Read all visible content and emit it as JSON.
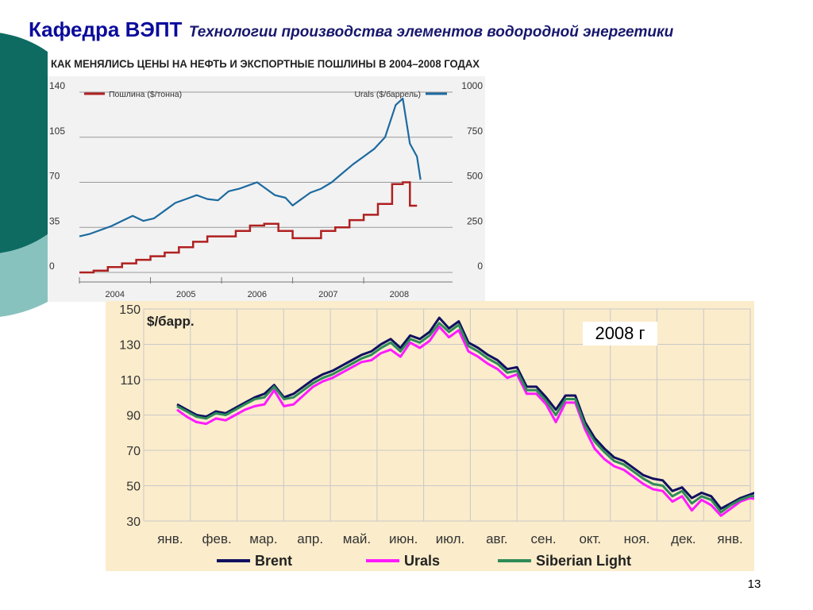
{
  "header": {
    "department": "Кафедра ВЭПТ",
    "subject": "Технологии производства элементов водородной энергетики"
  },
  "page_number": "13",
  "chart_data": [
    {
      "type": "line",
      "title": "КАК МЕНЯЛИСЬ ЦЕНЫ НА НЕФТЬ И ЭКСПОРТНЫЕ ПОШЛИНЫ В 2004–2008 ГОДАХ",
      "x_tick_labels": [
        "2004",
        "2005",
        "2006",
        "2007",
        "2008"
      ],
      "x_range": [
        2004.0,
        2009.25
      ],
      "y_left": {
        "ticks": [
          "140",
          "105",
          "70",
          "35",
          "0"
        ],
        "range": [
          0,
          140
        ]
      },
      "y_right": {
        "ticks": [
          "1000",
          "750",
          "500",
          "250",
          "0"
        ],
        "range": [
          0,
          1000
        ]
      },
      "grid": true,
      "colors": {
        "duty": "#b02020",
        "urals": "#1c6aa0",
        "title_bg": "#ffffff",
        "panel_bg": "#f2f2f2"
      },
      "series": [
        {
          "name": "Пошлина ($/тонна)",
          "axis": "right",
          "color": "#b02020",
          "step": true,
          "x": [
            2004.0,
            2004.2,
            2004.4,
            2004.6,
            2004.8,
            2005.0,
            2005.2,
            2005.4,
            2005.6,
            2005.8,
            2006.0,
            2006.2,
            2006.4,
            2006.6,
            2006.8,
            2007.0,
            2007.2,
            2007.4,
            2007.6,
            2007.8,
            2008.0,
            2008.2,
            2008.4,
            2008.55,
            2008.65,
            2008.75
          ],
          "y": [
            0,
            10,
            30,
            50,
            70,
            90,
            110,
            140,
            170,
            200,
            200,
            230,
            260,
            270,
            230,
            190,
            190,
            230,
            250,
            290,
            320,
            380,
            490,
            500,
            370,
            370
          ]
        },
        {
          "name": "Urals ($/баррель)",
          "axis": "left",
          "color": "#1c6aa0",
          "step": false,
          "x": [
            2004.0,
            2004.15,
            2004.3,
            2004.45,
            2004.6,
            2004.75,
            2004.9,
            2005.05,
            2005.2,
            2005.35,
            2005.5,
            2005.65,
            2005.8,
            2005.95,
            2006.1,
            2006.25,
            2006.4,
            2006.5,
            2006.6,
            2006.75,
            2006.9,
            2007.0,
            2007.1,
            2007.25,
            2007.4,
            2007.55,
            2007.7,
            2007.85,
            2008.0,
            2008.15,
            2008.3,
            2008.45,
            2008.55,
            2008.65,
            2008.75,
            2008.8
          ],
          "y": [
            28,
            30,
            33,
            36,
            40,
            44,
            40,
            42,
            48,
            54,
            57,
            60,
            57,
            56,
            63,
            65,
            68,
            70,
            66,
            60,
            58,
            52,
            56,
            62,
            65,
            70,
            77,
            84,
            90,
            96,
            105,
            130,
            135,
            100,
            90,
            72
          ]
        }
      ]
    },
    {
      "type": "line",
      "title": "",
      "ylabel": "$/барр.",
      "annotation": "2008 г",
      "categories": [
        "янв.",
        "фев.",
        "мар.",
        "апр.",
        "май.",
        "июн.",
        "июл.",
        "авг.",
        "сен.",
        "окт.",
        "ноя.",
        "дек.",
        "янв."
      ],
      "x_range": [
        0,
        12
      ],
      "ylim": [
        30,
        150
      ],
      "y_ticks": [
        30,
        50,
        70,
        90,
        110,
        130,
        150
      ],
      "grid": true,
      "legend_position": "bottom",
      "colors": {
        "plot_bg": "#fbeccb",
        "grid": "#c8c8c8"
      },
      "series": [
        {
          "name": "Brent",
          "color": "#101060",
          "x": [
            0,
            0.2,
            0.4,
            0.6,
            0.8,
            1.0,
            1.2,
            1.4,
            1.6,
            1.8,
            2.0,
            2.2,
            2.4,
            2.6,
            2.8,
            3.0,
            3.2,
            3.4,
            3.6,
            3.8,
            4.0,
            4.2,
            4.4,
            4.6,
            4.8,
            5.0,
            5.2,
            5.4,
            5.6,
            5.8,
            6.0,
            6.2,
            6.4,
            6.6,
            6.8,
            7.0,
            7.2,
            7.4,
            7.6,
            7.8,
            8.0,
            8.2,
            8.4,
            8.6,
            8.8,
            9.0,
            9.2,
            9.4,
            9.6,
            9.8,
            10.0,
            10.2,
            10.4,
            10.6,
            10.8,
            11.0,
            11.2,
            11.4,
            11.6,
            11.8,
            12.0
          ],
          "y": [
            96,
            93,
            90,
            89,
            92,
            91,
            94,
            97,
            100,
            102,
            107,
            100,
            102,
            106,
            110,
            113,
            115,
            118,
            121,
            124,
            126,
            130,
            133,
            128,
            135,
            133,
            137,
            145,
            139,
            143,
            131,
            128,
            124,
            121,
            116,
            117,
            106,
            106,
            100,
            93,
            101,
            101,
            86,
            77,
            71,
            66,
            64,
            60,
            56,
            54,
            53,
            47,
            49,
            43,
            46,
            44,
            37,
            40,
            43,
            45,
            47
          ]
        },
        {
          "name": "Urals",
          "color": "#ff1aff",
          "x": [
            0,
            0.2,
            0.4,
            0.6,
            0.8,
            1.0,
            1.2,
            1.4,
            1.6,
            1.8,
            2.0,
            2.2,
            2.4,
            2.6,
            2.8,
            3.0,
            3.2,
            3.4,
            3.6,
            3.8,
            4.0,
            4.2,
            4.4,
            4.6,
            4.8,
            5.0,
            5.2,
            5.4,
            5.6,
            5.8,
            6.0,
            6.2,
            6.4,
            6.6,
            6.8,
            7.0,
            7.2,
            7.4,
            7.6,
            7.8,
            8.0,
            8.2,
            8.4,
            8.6,
            8.8,
            9.0,
            9.2,
            9.4,
            9.6,
            9.8,
            10.0,
            10.2,
            10.4,
            10.6,
            10.8,
            11.0,
            11.2,
            11.4,
            11.6,
            11.8,
            12.0
          ],
          "y": [
            93,
            89,
            86,
            85,
            88,
            87,
            90,
            93,
            95,
            96,
            104,
            95,
            96,
            101,
            106,
            109,
            111,
            114,
            117,
            120,
            121,
            125,
            127,
            123,
            131,
            128,
            132,
            140,
            134,
            138,
            126,
            123,
            119,
            116,
            111,
            113,
            102,
            102,
            96,
            86,
            97,
            97,
            82,
            71,
            65,
            61,
            59,
            55,
            51,
            48,
            47,
            41,
            44,
            36,
            42,
            39,
            33,
            37,
            41,
            43,
            42
          ]
        },
        {
          "name": "Siberian Light",
          "color": "#2e8b57",
          "x": [
            0,
            0.2,
            0.4,
            0.6,
            0.8,
            1.0,
            1.2,
            1.4,
            1.6,
            1.8,
            2.0,
            2.2,
            2.4,
            2.6,
            2.8,
            3.0,
            3.2,
            3.4,
            3.6,
            3.8,
            4.0,
            4.2,
            4.4,
            4.6,
            4.8,
            5.0,
            5.2,
            5.4,
            5.6,
            5.8,
            6.0,
            6.2,
            6.4,
            6.6,
            6.8,
            7.0,
            7.2,
            7.4,
            7.6,
            7.8,
            8.0,
            8.2,
            8.4,
            8.6,
            8.8,
            9.0,
            9.2,
            9.4,
            9.6,
            9.8,
            10.0,
            10.2,
            10.4,
            10.6,
            10.8,
            11.0,
            11.2,
            11.4,
            11.6,
            11.8,
            12.0
          ],
          "y": [
            95,
            92,
            89,
            88,
            91,
            90,
            93,
            96,
            99,
            100,
            106,
            99,
            100,
            104,
            108,
            111,
            113,
            116,
            119,
            122,
            124,
            128,
            131,
            126,
            133,
            131,
            135,
            142,
            137,
            141,
            129,
            126,
            122,
            119,
            114,
            115,
            104,
            104,
            98,
            90,
            99,
            99,
            84,
            75,
            69,
            64,
            62,
            58,
            54,
            51,
            50,
            44,
            47,
            40,
            44,
            42,
            35,
            39,
            42,
            44,
            44
          ]
        }
      ]
    }
  ]
}
